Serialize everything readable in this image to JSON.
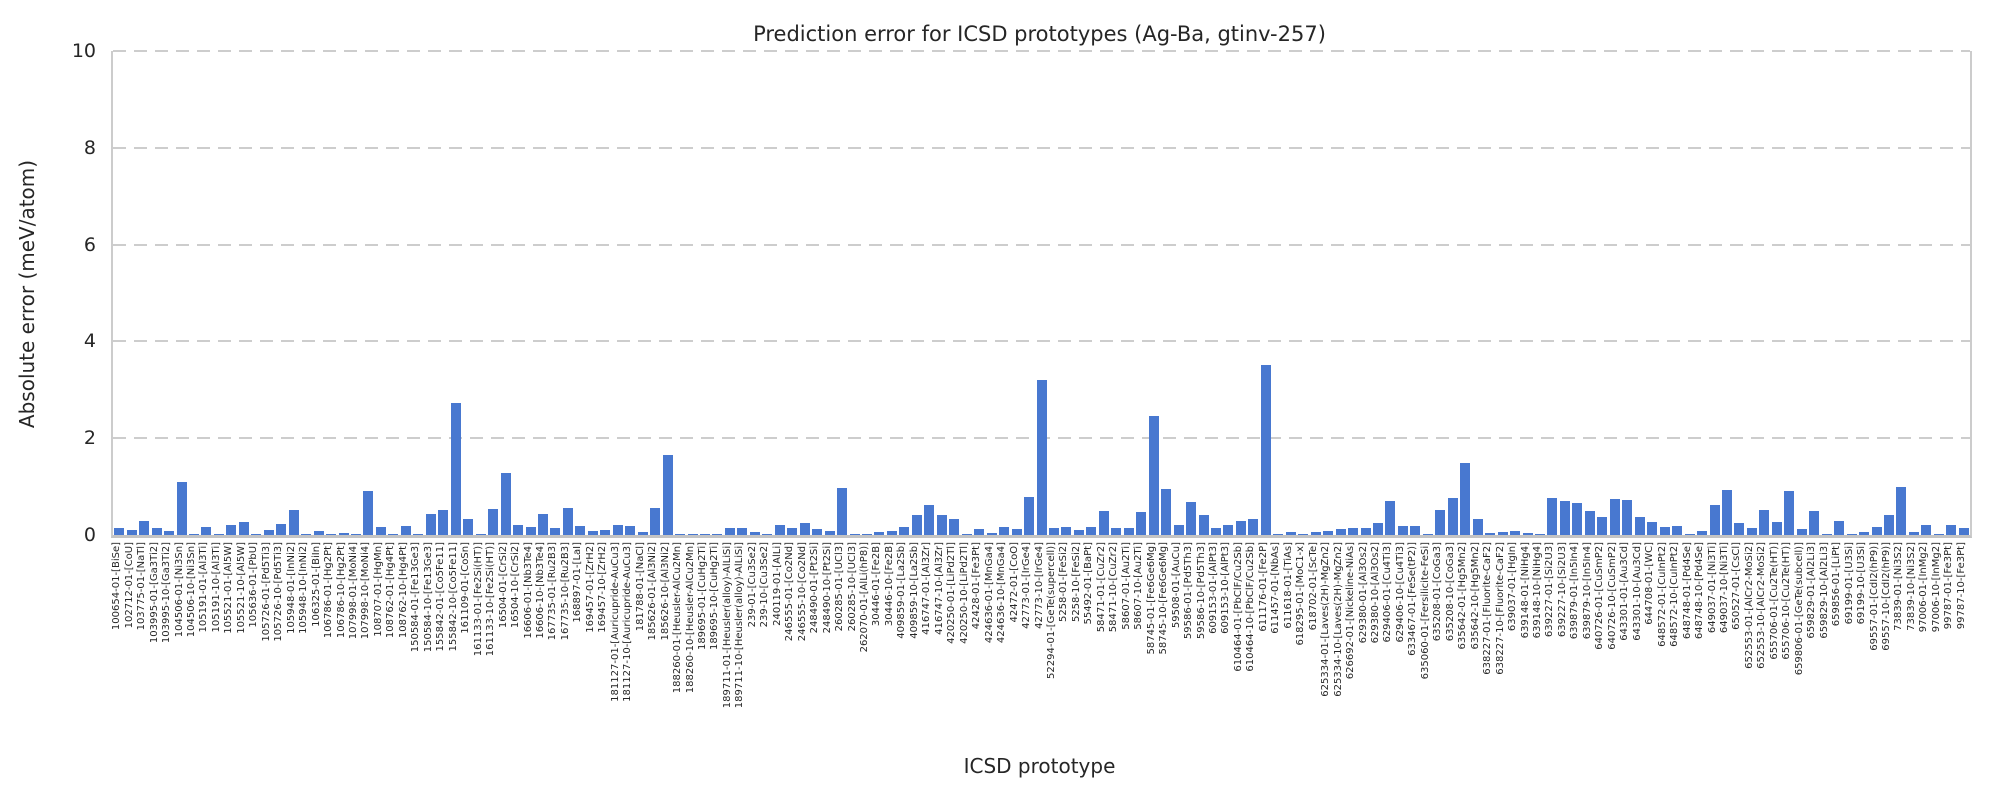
{
  "colors": {
    "bar": "#4878D0",
    "grid": "#cdcdcd",
    "spine": "#c4c4c4",
    "text": "#262626"
  },
  "chart_data": {
    "type": "bar",
    "title": "Prediction error for ICSD prototypes (Ag-Ba, gtinv-257)",
    "xlabel": "ICSD prototype",
    "ylabel": "Absolute error (meV/atom)",
    "ylim": [
      0,
      10
    ],
    "yticks": [
      0,
      2,
      4,
      6,
      8,
      10
    ],
    "grid": "horizontal-dashed",
    "legend": "none",
    "categories": [
      "100654-01-[BiSe]",
      "102712-01-[CoU]",
      "103775-01-[NaTl]",
      "103995-01-[Ga3Ti2]",
      "103995-10-[Ga3Ti2]",
      "104506-01-[Ni3Sn]",
      "104506-10-[Ni3Sn]",
      "105191-01-[Al3Ti]",
      "105191-10-[Al3Ti]",
      "105521-01-[Al5W]",
      "105521-10-[Al5W]",
      "105636-01-[PbU]",
      "105726-01-[Pd5Ti3]",
      "105726-10-[Pd5Ti3]",
      "105948-01-[InNi2]",
      "105948-10-[InNi2]",
      "106325-01-[BiIn]",
      "106786-01-[Hg2Pt]",
      "106786-10-[Hg2Pt]",
      "107998-01-[MoNi4]",
      "107998-10-[MoNi4]",
      "108707-01-[HgMn]",
      "108762-01-[Hg4Pt]",
      "108762-10-[Hg4Pt]",
      "150584-01-[Fe13Ge3]",
      "150584-10-[Fe13Ge3]",
      "155842-01-[Co5Fe11]",
      "155842-10-[Co5Fe11]",
      "161109-01-[CoSn]",
      "161133-01-[Fe2Si(HT)]",
      "161133-10-[Fe2Si(HT)]",
      "16504-01-[CrSi2]",
      "16504-10-[CrSi2]",
      "16606-01-[Nb3Te4]",
      "16606-10-[Nb3Te4]",
      "167735-01-[Ru2B3]",
      "167735-10-[Ru2B3]",
      "168897-01-[LaI]",
      "169457-01-[ZrH2]",
      "169457-10-[ZrH2]",
      "181127-01-[Auricupride-AuCu3]",
      "181127-10-[Auricupride-AuCu3]",
      "181788-01-[NaCl]",
      "185626-01-[Al3Ni2]",
      "185626-10-[Al3Ni2]",
      "188260-01-[Heusler-AlCu2Mn]",
      "188260-10-[Heusler-AlCu2Mn]",
      "189695-01-[CuHg2Ti]",
      "189695-10-[CuHg2Ti]",
      "189711-01-[Heusler(alloy)-AlLiSi]",
      "189711-10-[Heusler(alloy)-AlLiSi]",
      "239-01-[Cu3Se2]",
      "239-10-[Cu3Se2]",
      "240119-01-[AlLi]",
      "246555-01-[Co2Nd]",
      "246555-10-[Co2Nd]",
      "248490-01-[Pt2Si]",
      "248490-10-[Pt2Si]",
      "260285-01-[UCl3]",
      "260285-10-[UCl3]",
      "262070-01-[AlLi(hP8)]",
      "30446-01-[Fe2B]",
      "30446-10-[Fe2B]",
      "409859-01-[La2Sb]",
      "409859-10-[La2Sb]",
      "416747-01-[Al3Zr]",
      "416747-10-[Al3Zr]",
      "420250-01-[LiPd2Tl]",
      "420250-10-[LiPd2Tl]",
      "42428-01-[Fe3Pt]",
      "424636-01-[MnGa4]",
      "424636-10-[MnGa4]",
      "42472-01-[CoO]",
      "42773-01-[IrGe4]",
      "42773-10-[IrGe4]",
      "52294-01-[GeTe(supercell)]",
      "5258-01-[FeSi2]",
      "5258-10-[FeSi2]",
      "55492-01-[BaPt]",
      "58471-01-[CuZr2]",
      "58471-10-[CuZr2]",
      "58607-01-[Au2Ti]",
      "58607-10-[Au2Ti]",
      "58745-01-[Fe6Ge6Mg]",
      "58745-10-[Fe6Ge6Mg]",
      "59508-01-[AuCu]",
      "59586-01-[Pd5Th3]",
      "59586-10-[Pd5Th3]",
      "609153-01-[AlPt3]",
      "609153-10-[AlPt3]",
      "610464-01-[PbClF/Cu2Sb]",
      "610464-10-[PbClF/Cu2Sb]",
      "611176-01-[Fe2P]",
      "611457-01-[NbAs]",
      "611618-01-[TiAs]",
      "618295-01-[MoC1-x]",
      "618702-01-[ScTe]",
      "625334-01-[Laves(2H)-MgZn2]",
      "625334-10-[Laves(2H)-MgZn2]",
      "626692-01-[Nickeline-NiAs]",
      "629380-01-[Al3Os2]",
      "629380-10-[Al3Os2]",
      "629406-01-[Cu4Ti3]",
      "629406-10-[Cu4Ti3]",
      "633467-01-[FeSe(tP2)]",
      "635060-01-[Fersilicite-FeSi]",
      "635208-01-[CoGa3]",
      "635208-10-[CoGa3]",
      "635642-01-[Hg5Mn2]",
      "635642-10-[Hg5Mn2]",
      "638227-01-[Fluorite-CaF2]",
      "638227-10-[Fluorite-CaF2]",
      "639037-01-[HgIn]",
      "639148-01-[NiHg4]",
      "639148-10-[NiHg4]",
      "639227-01-[Si2U3]",
      "639227-10-[Si2U3]",
      "639879-01-[In5In4]",
      "639879-10-[In5In4]",
      "640726-01-[CuSmP2]",
      "640726-10-[CuSmP2]",
      "643301-01-[Au3Cd]",
      "643301-10-[Au3Cd]",
      "644708-01-[WC]",
      "648572-01-[CuInPt2]",
      "648572-10-[CuInPt2]",
      "648748-01-[Pd4Se]",
      "648748-10-[Pd4Se]",
      "649037-01-[Ni3Ti]",
      "649037-10-[Ni3Ti]",
      "650527-01-[CsCl]",
      "652553-01-[AlCr2-MoSi2]",
      "652553-10-[AlCr2-MoSi2]",
      "655706-01-[Cu2Te(HT)]",
      "655706-10-[Cu2Te(HT)]",
      "659806-01-[GeTe(subcell)]",
      "659829-01-[Al2Li3]",
      "659829-10-[Al2Li3]",
      "659856-01-[LiPt]",
      "69199-01-[U3Si]",
      "69199-10-[U3Si]",
      "69557-01-[CdI2(hP9)]",
      "69557-10-[CdI2(hP9)]",
      "73839-01-[Ni3S2]",
      "73839-10-[Ni3S2]",
      "97006-01-[InMg2]",
      "97006-10-[InMg2]",
      "99787-01-[Fe3Pt]",
      "99787-10-[Fe3Pt]"
    ],
    "values": [
      0.14,
      0.1,
      0.28,
      0.15,
      0.09,
      1.1,
      0.02,
      0.17,
      0.02,
      0.21,
      0.26,
      0.02,
      0.1,
      0.23,
      0.52,
      0.02,
      0.09,
      0.02,
      0.04,
      0.02,
      0.9,
      0.17,
      0.03,
      0.19,
      0.02,
      0.43,
      0.52,
      2.72,
      0.34,
      0.02,
      0.54,
      1.28,
      0.21,
      0.17,
      0.43,
      0.15,
      0.55,
      0.19,
      0.09,
      0.1,
      0.21,
      0.19,
      0.06,
      0.55,
      1.66,
      0.01,
      0.01,
      0.01,
      0.01,
      0.15,
      0.15,
      0.06,
      0.02,
      0.21,
      0.14,
      0.24,
      0.12,
      0.08,
      0.98,
      0.01,
      0.01,
      0.07,
      0.09,
      0.17,
      0.41,
      0.62,
      0.41,
      0.33,
      0.02,
      0.12,
      0.04,
      0.17,
      0.12,
      0.78,
      3.2,
      0.14,
      0.17,
      0.1,
      0.17,
      0.5,
      0.15,
      0.15,
      0.48,
      2.45,
      0.95,
      0.21,
      0.68,
      0.41,
      0.15,
      0.21,
      0.28,
      0.33,
      3.52,
      0.01,
      0.06,
      0.02,
      0.07,
      0.08,
      0.12,
      0.15,
      0.15,
      0.24,
      0.7,
      0.19,
      0.19,
      0.02,
      0.52,
      0.76,
      1.48,
      0.34,
      0.04,
      0.07,
      0.08,
      0.04,
      0.03,
      0.76,
      0.7,
      0.67,
      0.49,
      0.38,
      0.74,
      0.72,
      0.38,
      0.26,
      0.17,
      0.19,
      0.02,
      0.08,
      0.62,
      0.93,
      0.24,
      0.14,
      0.52,
      0.26,
      0.91,
      0.12,
      0.49,
      0.02,
      0.28,
      0.02,
      0.06,
      0.17,
      0.41,
      1.0,
      0.07,
      0.21,
      0.02,
      0.21,
      0.15
    ]
  }
}
